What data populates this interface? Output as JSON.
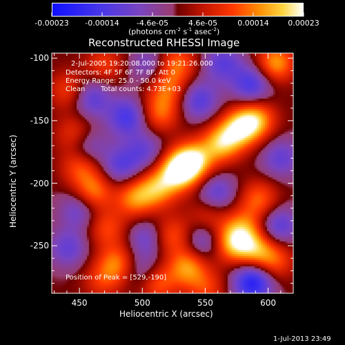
{
  "colorbar": {
    "ticks": [
      "-0.00023",
      "-0.00014",
      "-4.6e-05",
      "4.6e-05",
      "0.00014",
      "0.00023"
    ],
    "units_base": "(photons cm",
    "units_exp1": "-2",
    "units_mid": " s",
    "units_exp2": "-1",
    "units_mid2": " asec",
    "units_exp3": "-2",
    "units_end": ")"
  },
  "chart_data": {
    "type": "heatmap",
    "title": "Reconstructed RHESSI Image",
    "xlabel": "Heliocentric X (arcsec)",
    "ylabel": "Heliocentric Y (arcsec)",
    "xlim": [
      428,
      620
    ],
    "ylim": [
      -288,
      -96
    ],
    "xticks": [
      450,
      500,
      550,
      600
    ],
    "yticks": [
      -100,
      -150,
      -200,
      -250
    ],
    "zlim": [
      -0.00023,
      0.00023
    ],
    "peak": [
      529,
      -190
    ],
    "colormap": "rhessi blue-purple-red-yellow-white",
    "blobs": [
      {
        "x": 529,
        "y": -190,
        "z": 0.00023
      },
      {
        "x": 541,
        "y": -182,
        "z": 0.00019
      },
      {
        "x": 563,
        "y": -168,
        "z": 0.00017
      },
      {
        "x": 578,
        "y": -156,
        "z": 0.00018
      },
      {
        "x": 591,
        "y": -149,
        "z": 0.00015
      },
      {
        "x": 512,
        "y": -204,
        "z": 0.00015
      },
      {
        "x": 494,
        "y": -212,
        "z": 0.00014
      },
      {
        "x": 461,
        "y": -207,
        "z": 0.00014
      },
      {
        "x": 451,
        "y": -186,
        "z": 0.00012
      },
      {
        "x": 447,
        "y": -162,
        "z": 0.00011
      },
      {
        "x": 442,
        "y": -126,
        "z": 0.0001
      },
      {
        "x": 514,
        "y": -144,
        "z": 0.00012
      },
      {
        "x": 520,
        "y": -124,
        "z": 0.00011
      },
      {
        "x": 528,
        "y": -104,
        "z": 0.00012
      },
      {
        "x": 606,
        "y": -104,
        "z": 0.00016
      },
      {
        "x": 593,
        "y": -213,
        "z": 0.00012
      },
      {
        "x": 580,
        "y": -235,
        "z": 0.00011
      },
      {
        "x": 572,
        "y": -248,
        "z": 0.00016
      },
      {
        "x": 590,
        "y": -253,
        "z": 0.00014
      },
      {
        "x": 605,
        "y": -262,
        "z": 0.00011
      },
      {
        "x": 480,
        "y": -264,
        "z": 0.00013
      },
      {
        "x": 472,
        "y": -236,
        "z": 0.0001
      },
      {
        "x": 524,
        "y": -242,
        "z": 0.00011
      },
      {
        "x": 536,
        "y": -267,
        "z": 0.00015
      },
      {
        "x": 512,
        "y": -280,
        "z": 0.00012
      },
      {
        "x": 552,
        "y": -226,
        "z": 8e-05
      },
      {
        "x": 470,
        "y": -105,
        "z": 9e-05
      },
      {
        "x": 468,
        "y": -278,
        "z": 8e-05
      },
      {
        "x": 551,
        "y": -284,
        "z": 9e-05
      },
      {
        "x": 459,
        "y": -132,
        "z": -0.00012
      },
      {
        "x": 488,
        "y": -147,
        "z": -0.00014
      },
      {
        "x": 455,
        "y": -171,
        "z": -0.00012
      },
      {
        "x": 483,
        "y": -186,
        "z": -0.00011
      },
      {
        "x": 545,
        "y": -134,
        "z": -0.00012
      },
      {
        "x": 587,
        "y": -121,
        "z": -0.00014
      },
      {
        "x": 564,
        "y": -104,
        "z": -0.00011
      },
      {
        "x": 502,
        "y": -174,
        "z": -9e-05
      },
      {
        "x": 559,
        "y": -208,
        "z": -0.00011
      },
      {
        "x": 450,
        "y": -221,
        "z": -0.0001
      },
      {
        "x": 441,
        "y": -252,
        "z": -0.0001
      },
      {
        "x": 503,
        "y": -244,
        "z": -9e-05
      },
      {
        "x": 548,
        "y": -246,
        "z": -0.0001
      },
      {
        "x": 588,
        "y": -279,
        "z": -0.0002
      },
      {
        "x": 608,
        "y": -234,
        "z": -0.00012
      },
      {
        "x": 610,
        "y": -180,
        "z": -0.0001
      },
      {
        "x": 500,
        "y": -270,
        "z": -8e-05
      },
      {
        "x": 505,
        "y": -105,
        "z": -8e-05
      }
    ]
  },
  "info": {
    "time_range": "2-Jul-2005 19:20:08.000 to 19:21:26.000",
    "detectors": "Detectors: 4F 5F 6F 7F 8F, Att 0",
    "energy_range": "Energy Range: 25.0 - 50.0 keV",
    "clean_label": "Clean",
    "total_counts": "Total counts: 4.73E+03",
    "peak_position": "Position of Peak = [529,-190]"
  },
  "footer": {
    "timestamp": "1-Jul-2013 23:49"
  },
  "colors": {
    "axes": "#ffffff",
    "background": "#000000"
  }
}
